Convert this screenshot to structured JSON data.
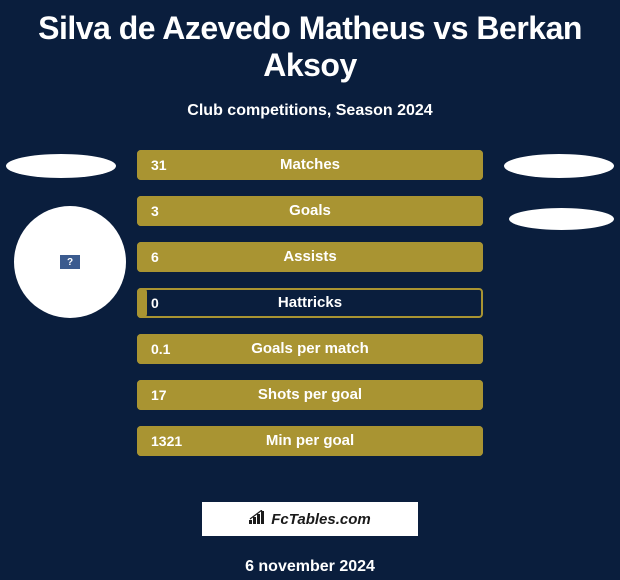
{
  "title": "Silva de Azevedo Matheus vs Berkan Aksoy",
  "subtitle": "Club competitions, Season 2024",
  "colors": {
    "background": "#0a1e3d",
    "bar_fill": "#a99432",
    "bar_border": "#a99432",
    "text": "#ffffff",
    "ellipse": "#ffffff",
    "brand_bg": "#ffffff",
    "brand_text": "#1a1a1a"
  },
  "player_badge": {
    "symbol": "?"
  },
  "stats": [
    {
      "label": "Matches",
      "value": "31",
      "fill_width": 346
    },
    {
      "label": "Goals",
      "value": "3",
      "fill_width": 346
    },
    {
      "label": "Assists",
      "value": "6",
      "fill_width": 346
    },
    {
      "label": "Hattricks",
      "value": "0",
      "fill_width": 10
    },
    {
      "label": "Goals per match",
      "value": "0.1",
      "fill_width": 346
    },
    {
      "label": "Shots per goal",
      "value": "17",
      "fill_width": 346
    },
    {
      "label": "Min per goal",
      "value": "1321",
      "fill_width": 346
    }
  ],
  "brand": {
    "text": "FcTables.com"
  },
  "date": "6 november 2024"
}
